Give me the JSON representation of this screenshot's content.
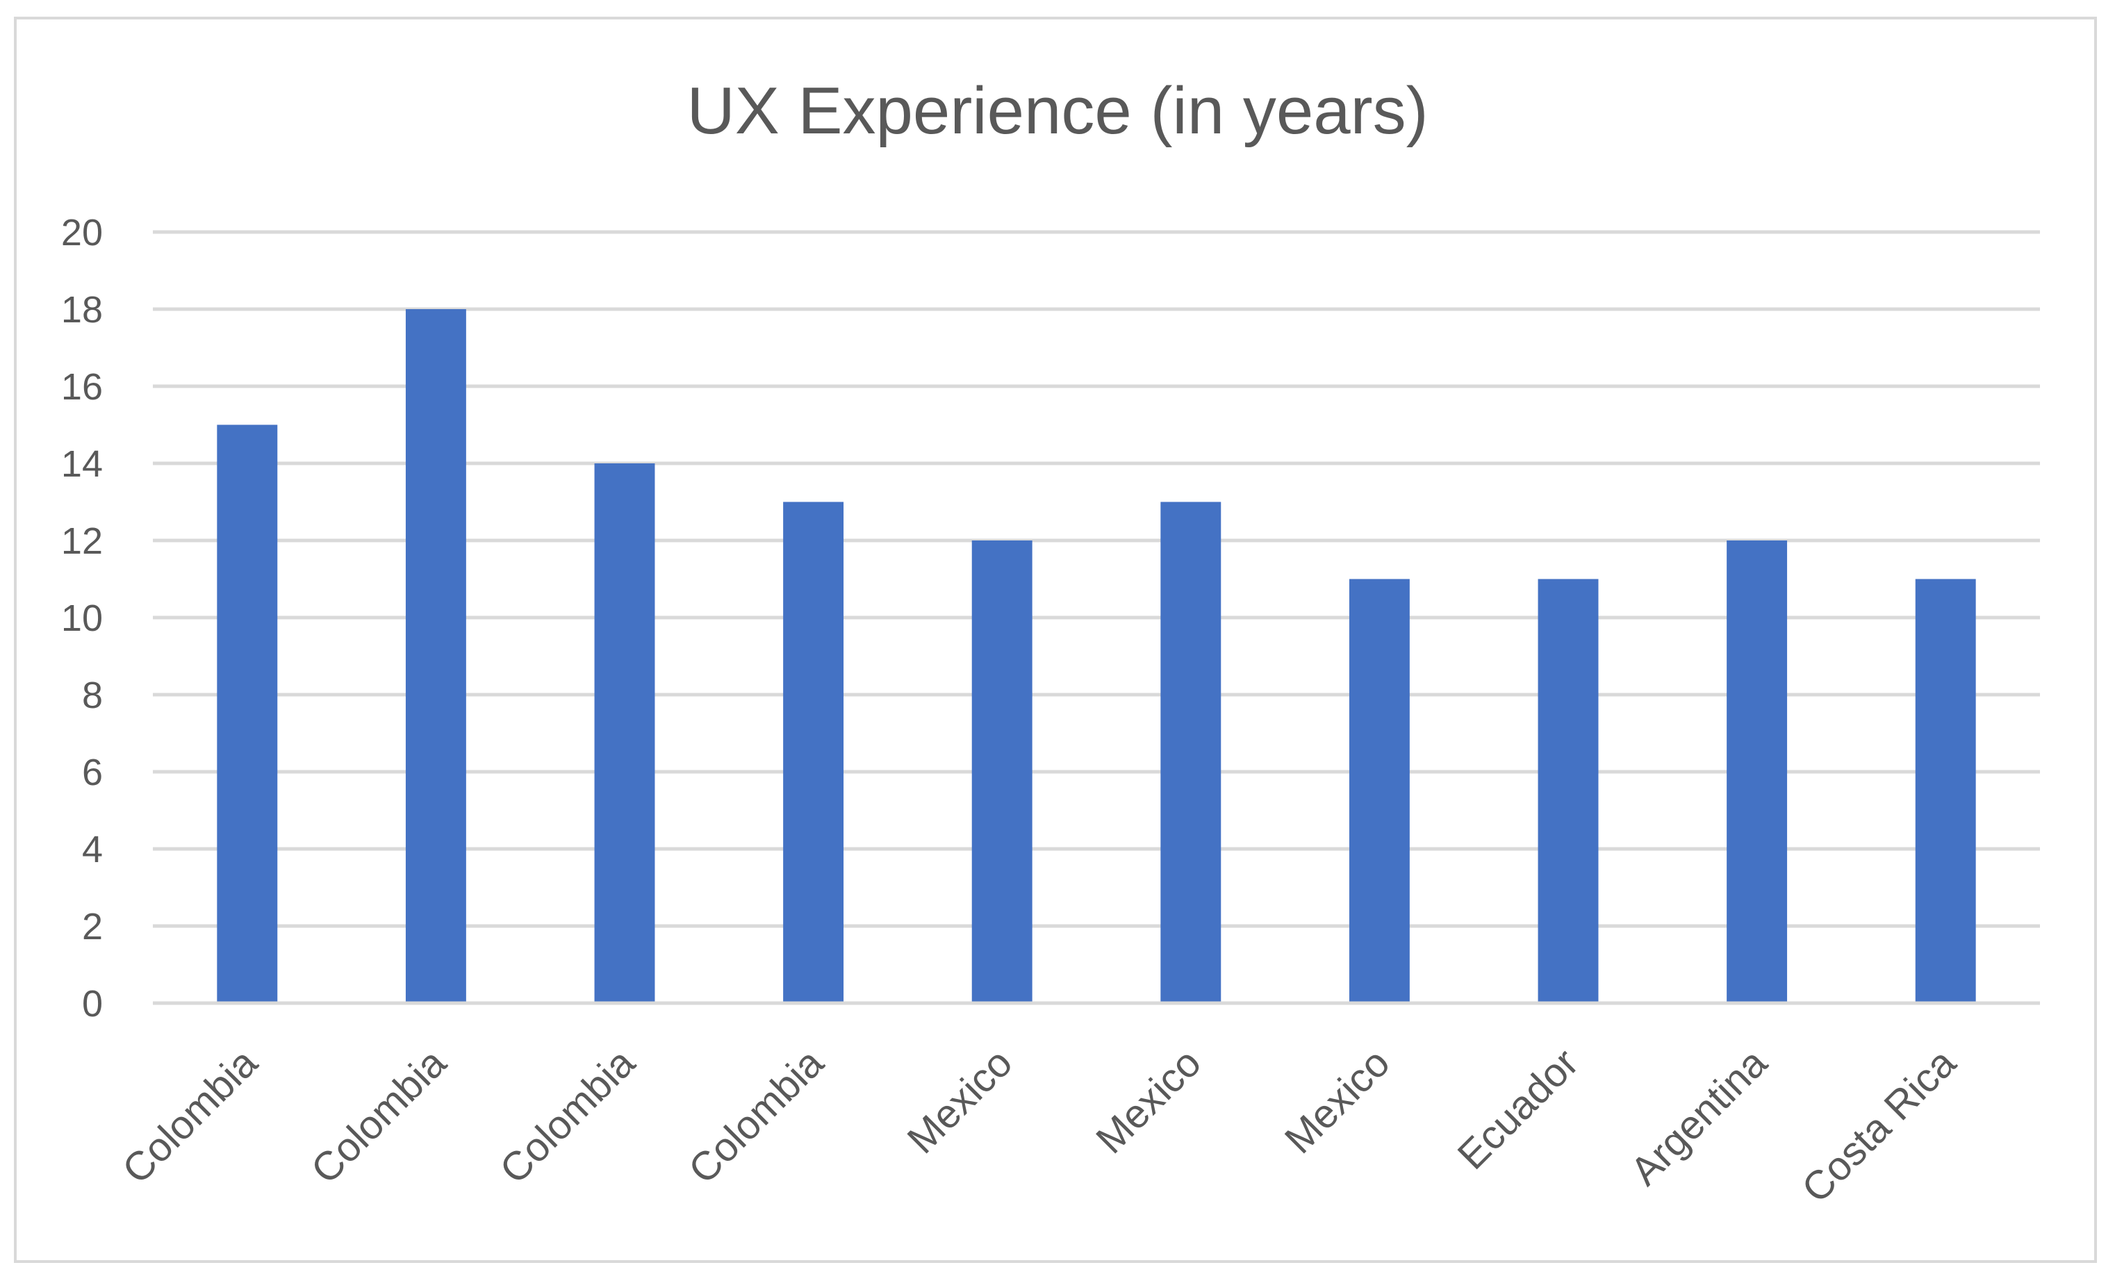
{
  "chart_data": {
    "type": "bar",
    "title": "UX Experience (in years)",
    "xlabel": "",
    "ylabel": "",
    "categories": [
      "Colombia",
      "Colombia",
      "Colombia",
      "Colombia",
      "Mexico",
      "Mexico",
      "Mexico",
      "Ecuador",
      "Argentina",
      "Costa Rica"
    ],
    "values": [
      15,
      18,
      14,
      13,
      12,
      13,
      11,
      11,
      12,
      11
    ],
    "ylim": [
      0,
      20
    ],
    "yticks": [
      "0",
      "2",
      "4",
      "6",
      "8",
      "10",
      "12",
      "14",
      "16",
      "18",
      "20"
    ],
    "grid": true,
    "legend": "none",
    "colors": {
      "bar": "#4472C4",
      "grid": "#d9d9d9",
      "text": "#595959",
      "border": "#d9d9d9"
    }
  }
}
